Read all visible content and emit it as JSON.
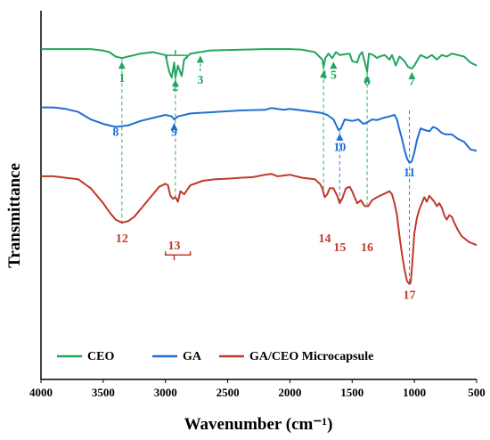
{
  "chart_data": {
    "type": "line",
    "xlabel": "Wavenumber (cm⁻¹)",
    "ylabel": "Transmittance",
    "xlim": [
      4000,
      500
    ],
    "x_reversed": true,
    "xticks": [
      "4000",
      "3500",
      "3000",
      "2500",
      "2000",
      "1500",
      "1000",
      "500"
    ],
    "y_ticks_shown": false,
    "legend_position": "bottom",
    "series": [
      {
        "name": "CEO",
        "color": "#22a55e",
        "points": [
          [
            4000,
            0.955
          ],
          [
            3800,
            0.955
          ],
          [
            3600,
            0.955
          ],
          [
            3500,
            0.95
          ],
          [
            3450,
            0.945
          ],
          [
            3400,
            0.93
          ],
          [
            3350,
            0.925
          ],
          [
            3300,
            0.93
          ],
          [
            3200,
            0.94
          ],
          [
            3100,
            0.945
          ],
          [
            3050,
            0.94
          ],
          [
            3000,
            0.935
          ],
          [
            2970,
            0.88
          ],
          [
            2950,
            0.86
          ],
          [
            2930,
            0.91
          ],
          [
            2920,
            0.86
          ],
          [
            2900,
            0.9
          ],
          [
            2870,
            0.865
          ],
          [
            2850,
            0.92
          ],
          [
            2800,
            0.94
          ],
          [
            2720,
            0.945
          ],
          [
            2650,
            0.95
          ],
          [
            2500,
            0.952
          ],
          [
            2200,
            0.955
          ],
          [
            2000,
            0.955
          ],
          [
            1900,
            0.953
          ],
          [
            1800,
            0.945
          ],
          [
            1740,
            0.92
          ],
          [
            1730,
            0.895
          ],
          [
            1715,
            0.925
          ],
          [
            1690,
            0.94
          ],
          [
            1660,
            0.925
          ],
          [
            1630,
            0.945
          ],
          [
            1600,
            0.935
          ],
          [
            1520,
            0.94
          ],
          [
            1500,
            0.915
          ],
          [
            1460,
            0.91
          ],
          [
            1440,
            0.935
          ],
          [
            1420,
            0.945
          ],
          [
            1380,
            0.88
          ],
          [
            1365,
            0.94
          ],
          [
            1330,
            0.935
          ],
          [
            1300,
            0.925
          ],
          [
            1280,
            0.93
          ],
          [
            1240,
            0.935
          ],
          [
            1200,
            0.92
          ],
          [
            1180,
            0.935
          ],
          [
            1150,
            0.9
          ],
          [
            1120,
            0.93
          ],
          [
            1080,
            0.915
          ],
          [
            1050,
            0.895
          ],
          [
            1020,
            0.89
          ],
          [
            1000,
            0.9
          ],
          [
            980,
            0.915
          ],
          [
            950,
            0.935
          ],
          [
            900,
            0.925
          ],
          [
            860,
            0.935
          ],
          [
            820,
            0.92
          ],
          [
            780,
            0.935
          ],
          [
            740,
            0.93
          ],
          [
            700,
            0.94
          ],
          [
            650,
            0.935
          ],
          [
            600,
            0.93
          ],
          [
            550,
            0.91
          ],
          [
            500,
            0.9
          ]
        ]
      },
      {
        "name": "GA",
        "color": "#1f6fd1",
        "points": [
          [
            4000,
            0.76
          ],
          [
            3900,
            0.76
          ],
          [
            3800,
            0.755
          ],
          [
            3700,
            0.745
          ],
          [
            3600,
            0.72
          ],
          [
            3500,
            0.705
          ],
          [
            3400,
            0.695
          ],
          [
            3300,
            0.7
          ],
          [
            3200,
            0.715
          ],
          [
            3100,
            0.725
          ],
          [
            3000,
            0.735
          ],
          [
            2950,
            0.73
          ],
          [
            2930,
            0.72
          ],
          [
            2900,
            0.73
          ],
          [
            2800,
            0.74
          ],
          [
            2600,
            0.745
          ],
          [
            2400,
            0.75
          ],
          [
            2200,
            0.752
          ],
          [
            2150,
            0.758
          ],
          [
            2050,
            0.752
          ],
          [
            2000,
            0.755
          ],
          [
            1900,
            0.75
          ],
          [
            1800,
            0.745
          ],
          [
            1750,
            0.742
          ],
          [
            1700,
            0.735
          ],
          [
            1650,
            0.72
          ],
          [
            1610,
            0.685
          ],
          [
            1590,
            0.69
          ],
          [
            1560,
            0.72
          ],
          [
            1500,
            0.715
          ],
          [
            1450,
            0.72
          ],
          [
            1410,
            0.705
          ],
          [
            1380,
            0.71
          ],
          [
            1340,
            0.72
          ],
          [
            1300,
            0.718
          ],
          [
            1250,
            0.725
          ],
          [
            1200,
            0.73
          ],
          [
            1160,
            0.735
          ],
          [
            1140,
            0.72
          ],
          [
            1120,
            0.685
          ],
          [
            1100,
            0.655
          ],
          [
            1080,
            0.62
          ],
          [
            1060,
            0.59
          ],
          [
            1040,
            0.575
          ],
          [
            1020,
            0.58
          ],
          [
            1000,
            0.61
          ],
          [
            980,
            0.65
          ],
          [
            950,
            0.69
          ],
          [
            920,
            0.685
          ],
          [
            880,
            0.68
          ],
          [
            850,
            0.695
          ],
          [
            820,
            0.69
          ],
          [
            780,
            0.675
          ],
          [
            750,
            0.67
          ],
          [
            700,
            0.67
          ],
          [
            650,
            0.655
          ],
          [
            600,
            0.645
          ],
          [
            550,
            0.62
          ],
          [
            500,
            0.615
          ]
        ]
      },
      {
        "name": "GA/CEO Microcapsule",
        "color": "#c0392b",
        "points": [
          [
            4000,
            0.53
          ],
          [
            3900,
            0.53
          ],
          [
            3800,
            0.525
          ],
          [
            3700,
            0.52
          ],
          [
            3600,
            0.49
          ],
          [
            3500,
            0.44
          ],
          [
            3450,
            0.41
          ],
          [
            3400,
            0.385
          ],
          [
            3350,
            0.375
          ],
          [
            3300,
            0.38
          ],
          [
            3250,
            0.395
          ],
          [
            3200,
            0.42
          ],
          [
            3100,
            0.47
          ],
          [
            3050,
            0.495
          ],
          [
            3000,
            0.505
          ],
          [
            2980,
            0.5
          ],
          [
            2960,
            0.465
          ],
          [
            2940,
            0.455
          ],
          [
            2920,
            0.46
          ],
          [
            2900,
            0.445
          ],
          [
            2880,
            0.48
          ],
          [
            2850,
            0.47
          ],
          [
            2800,
            0.5
          ],
          [
            2700,
            0.515
          ],
          [
            2600,
            0.52
          ],
          [
            2500,
            0.522
          ],
          [
            2400,
            0.525
          ],
          [
            2300,
            0.527
          ],
          [
            2200,
            0.535
          ],
          [
            2150,
            0.538
          ],
          [
            2100,
            0.53
          ],
          [
            2000,
            0.535
          ],
          [
            1900,
            0.525
          ],
          [
            1800,
            0.52
          ],
          [
            1760,
            0.505
          ],
          [
            1740,
            0.49
          ],
          [
            1720,
            0.46
          ],
          [
            1700,
            0.47
          ],
          [
            1680,
            0.49
          ],
          [
            1650,
            0.49
          ],
          [
            1620,
            0.465
          ],
          [
            1600,
            0.44
          ],
          [
            1580,
            0.455
          ],
          [
            1550,
            0.49
          ],
          [
            1520,
            0.495
          ],
          [
            1500,
            0.48
          ],
          [
            1460,
            0.44
          ],
          [
            1430,
            0.45
          ],
          [
            1400,
            0.43
          ],
          [
            1370,
            0.43
          ],
          [
            1340,
            0.45
          ],
          [
            1300,
            0.46
          ],
          [
            1250,
            0.47
          ],
          [
            1200,
            0.48
          ],
          [
            1180,
            0.47
          ],
          [
            1160,
            0.44
          ],
          [
            1140,
            0.4
          ],
          [
            1120,
            0.33
          ],
          [
            1100,
            0.27
          ],
          [
            1080,
            0.22
          ],
          [
            1060,
            0.18
          ],
          [
            1040,
            0.17
          ],
          [
            1030,
            0.175
          ],
          [
            1020,
            0.22
          ],
          [
            1010,
            0.28
          ],
          [
            1000,
            0.34
          ],
          [
            980,
            0.39
          ],
          [
            960,
            0.42
          ],
          [
            940,
            0.44
          ],
          [
            920,
            0.46
          ],
          [
            900,
            0.445
          ],
          [
            880,
            0.465
          ],
          [
            860,
            0.455
          ],
          [
            840,
            0.445
          ],
          [
            820,
            0.43
          ],
          [
            800,
            0.44
          ],
          [
            780,
            0.425
          ],
          [
            760,
            0.4
          ],
          [
            740,
            0.385
          ],
          [
            720,
            0.4
          ],
          [
            700,
            0.395
          ],
          [
            680,
            0.375
          ],
          [
            650,
            0.35
          ],
          [
            620,
            0.33
          ],
          [
            590,
            0.32
          ],
          [
            560,
            0.31
          ],
          [
            530,
            0.305
          ],
          [
            500,
            0.3
          ]
        ]
      }
    ],
    "annotations": [
      {
        "label": "1",
        "series": 0,
        "x": 3350,
        "arrow_to": 0.925,
        "label_y": 0.845,
        "guide_to": 0.375
      },
      {
        "label": "2",
        "series": 0,
        "x": 2920,
        "arrow_to": 0.865,
        "label_y": 0.815,
        "bracket": [
          2990,
          2830
        ],
        "guide_to": 0.455
      },
      {
        "label": "3",
        "series": 0,
        "x": 2720,
        "arrow_to": 0.945,
        "label_y": 0.84
      },
      {
        "label": "4",
        "series": 0,
        "x": 1730,
        "arrow_to": 0.895,
        "label_y": 0.855,
        "guide_to": 0.46
      },
      {
        "label": "5",
        "series": 0,
        "x": 1650,
        "arrow_to": 0.925,
        "label_y": 0.855
      },
      {
        "label": "6",
        "series": 0,
        "x": 1380,
        "arrow_to": 0.88,
        "label_y": 0.835,
        "guide_to": 0.43
      },
      {
        "label": "7",
        "series": 0,
        "x": 1020,
        "arrow_to": 0.89,
        "label_y": 0.835
      },
      {
        "label": "8",
        "series": 1,
        "x": 3400,
        "label_y": 0.665
      },
      {
        "label": "9",
        "series": 1,
        "x": 2930,
        "arrow_to": 0.72,
        "label_y": 0.665
      },
      {
        "label": "10",
        "series": 1,
        "x": 1600,
        "arrow_to": 0.685,
        "label_y": 0.615,
        "guide_to": 0.44
      },
      {
        "label": "11",
        "series": 1,
        "x": 1040,
        "label_y": 0.53,
        "guide_to": 0.17
      },
      {
        "label": "12",
        "series": 2,
        "x": 3350,
        "label_y": 0.31
      },
      {
        "label": "13",
        "series": 2,
        "x": 2930,
        "label_y": 0.285,
        "bracket": [
          3000,
          2800
        ]
      },
      {
        "label": "14",
        "series": 2,
        "x": 1720,
        "label_y": 0.31
      },
      {
        "label": "15",
        "series": 2,
        "x": 1600,
        "label_y": 0.28
      },
      {
        "label": "16",
        "series": 2,
        "x": 1380,
        "label_y": 0.28
      },
      {
        "label": "17",
        "series": 2,
        "x": 1040,
        "label_y": 0.12
      }
    ]
  },
  "legend": {
    "items": [
      {
        "label": "CEO",
        "color": "#22a55e"
      },
      {
        "label": "GA",
        "color": "#1f6fd1"
      },
      {
        "label": "GA/CEO Microcapsule",
        "color": "#c0392b"
      }
    ]
  }
}
